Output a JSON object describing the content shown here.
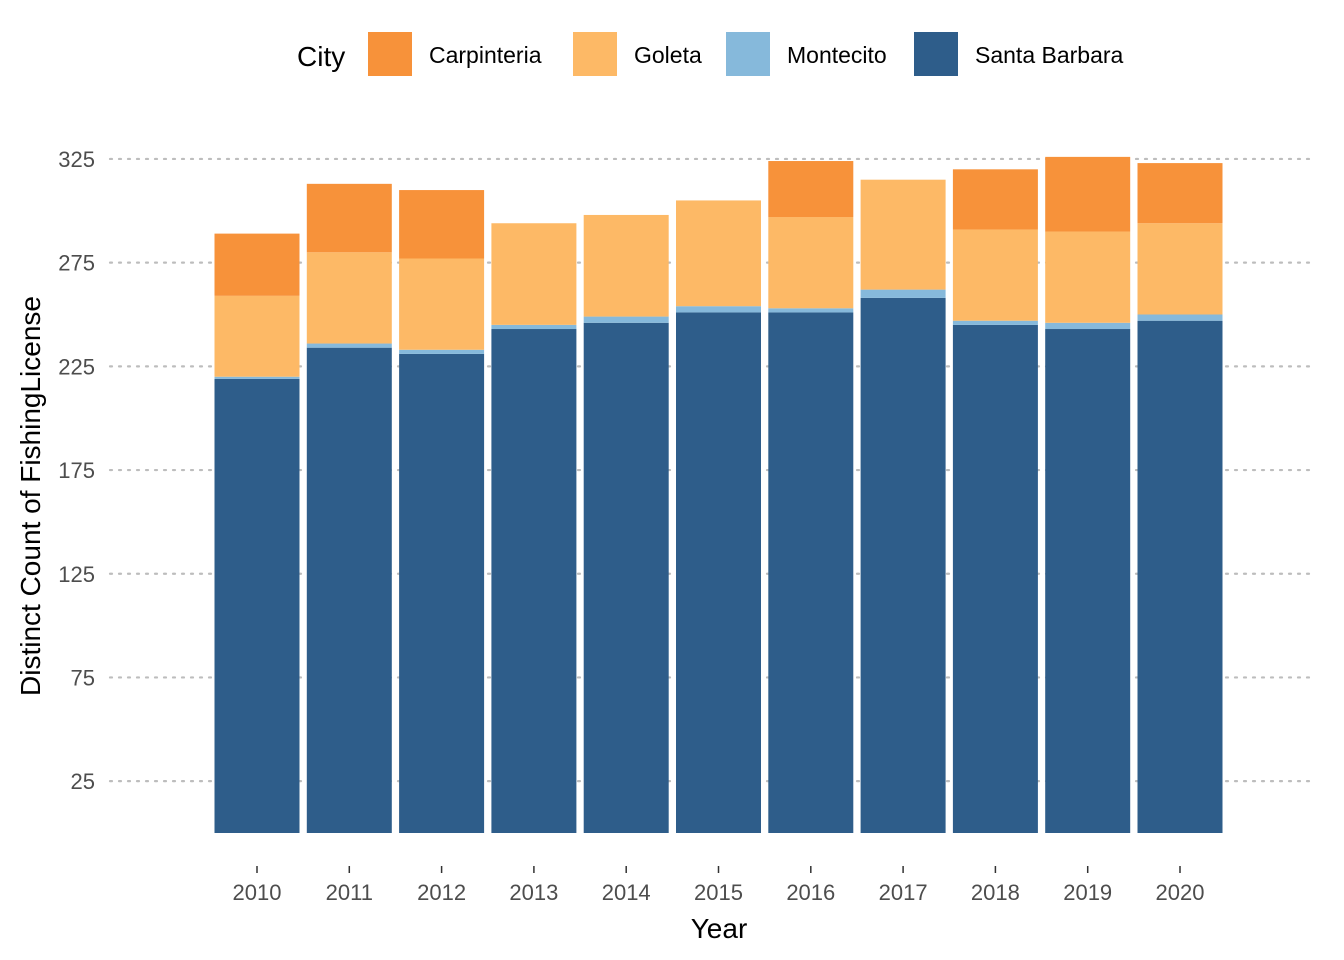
{
  "chart_data": {
    "type": "bar",
    "stacked": true,
    "title": "",
    "xlabel": "Year",
    "ylabel": "Distinct Count of FishingLicense",
    "categories": [
      "2010",
      "2011",
      "2012",
      "2013",
      "2014",
      "2015",
      "2016",
      "2017",
      "2018",
      "2019",
      "2020"
    ],
    "series": [
      {
        "name": "Santa Barbara",
        "color": "#2e5d8a",
        "values": [
          219,
          234,
          231,
          243,
          246,
          251,
          251,
          258,
          245,
          243,
          247
        ]
      },
      {
        "name": "Montecito",
        "color": "#86b9db",
        "values": [
          1,
          2,
          2,
          2,
          3,
          3,
          2,
          4,
          2,
          3,
          3
        ]
      },
      {
        "name": "Goleta",
        "color": "#fdb966",
        "values": [
          39,
          44,
          44,
          49,
          49,
          51,
          44,
          53,
          44,
          44,
          44
        ]
      },
      {
        "name": "Carpinteria",
        "color": "#f7923a",
        "values": [
          30,
          33,
          33,
          0,
          0,
          0,
          27,
          0,
          29,
          36,
          29
        ]
      }
    ],
    "legend": {
      "title": "City",
      "position": "top",
      "entries": [
        "Carpinteria",
        "Goleta",
        "Montecito",
        "Santa Barbara"
      ]
    },
    "ylim": [
      0,
      325
    ],
    "yticks": [
      25,
      75,
      125,
      175,
      225,
      275,
      325
    ],
    "grid": "horizontal dotted"
  }
}
